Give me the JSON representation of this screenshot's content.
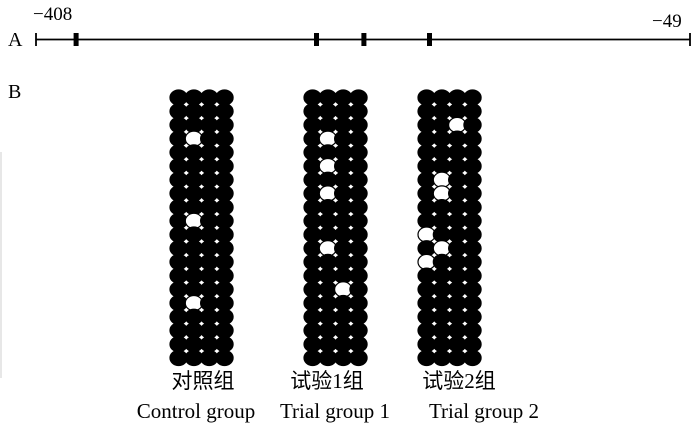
{
  "panel_a": {
    "label": "A",
    "start_label": "−408",
    "end_label": "−49",
    "start": -408,
    "end": -49,
    "cpg_sites": [
      -386,
      -254,
      -228,
      -192
    ]
  },
  "panel_b": {
    "label": "B",
    "columns": 4,
    "rows": 20,
    "groups": [
      {
        "name_cn": "对照组",
        "name_en": "Control group",
        "unmethylated": [
          [
            3,
            1
          ],
          [
            9,
            1
          ],
          [
            15,
            1
          ]
        ]
      },
      {
        "name_cn": "试验1组",
        "name_en": "Trial group 1",
        "unmethylated": [
          [
            3,
            1
          ],
          [
            5,
            1
          ],
          [
            7,
            1
          ],
          [
            11,
            1
          ],
          [
            14,
            2
          ]
        ]
      },
      {
        "name_cn": "试验2组",
        "name_en": "Trial group 2",
        "unmethylated": [
          [
            2,
            2
          ],
          [
            6,
            1
          ],
          [
            7,
            1
          ],
          [
            10,
            0
          ],
          [
            11,
            1
          ],
          [
            12,
            0
          ]
        ]
      }
    ]
  }
}
